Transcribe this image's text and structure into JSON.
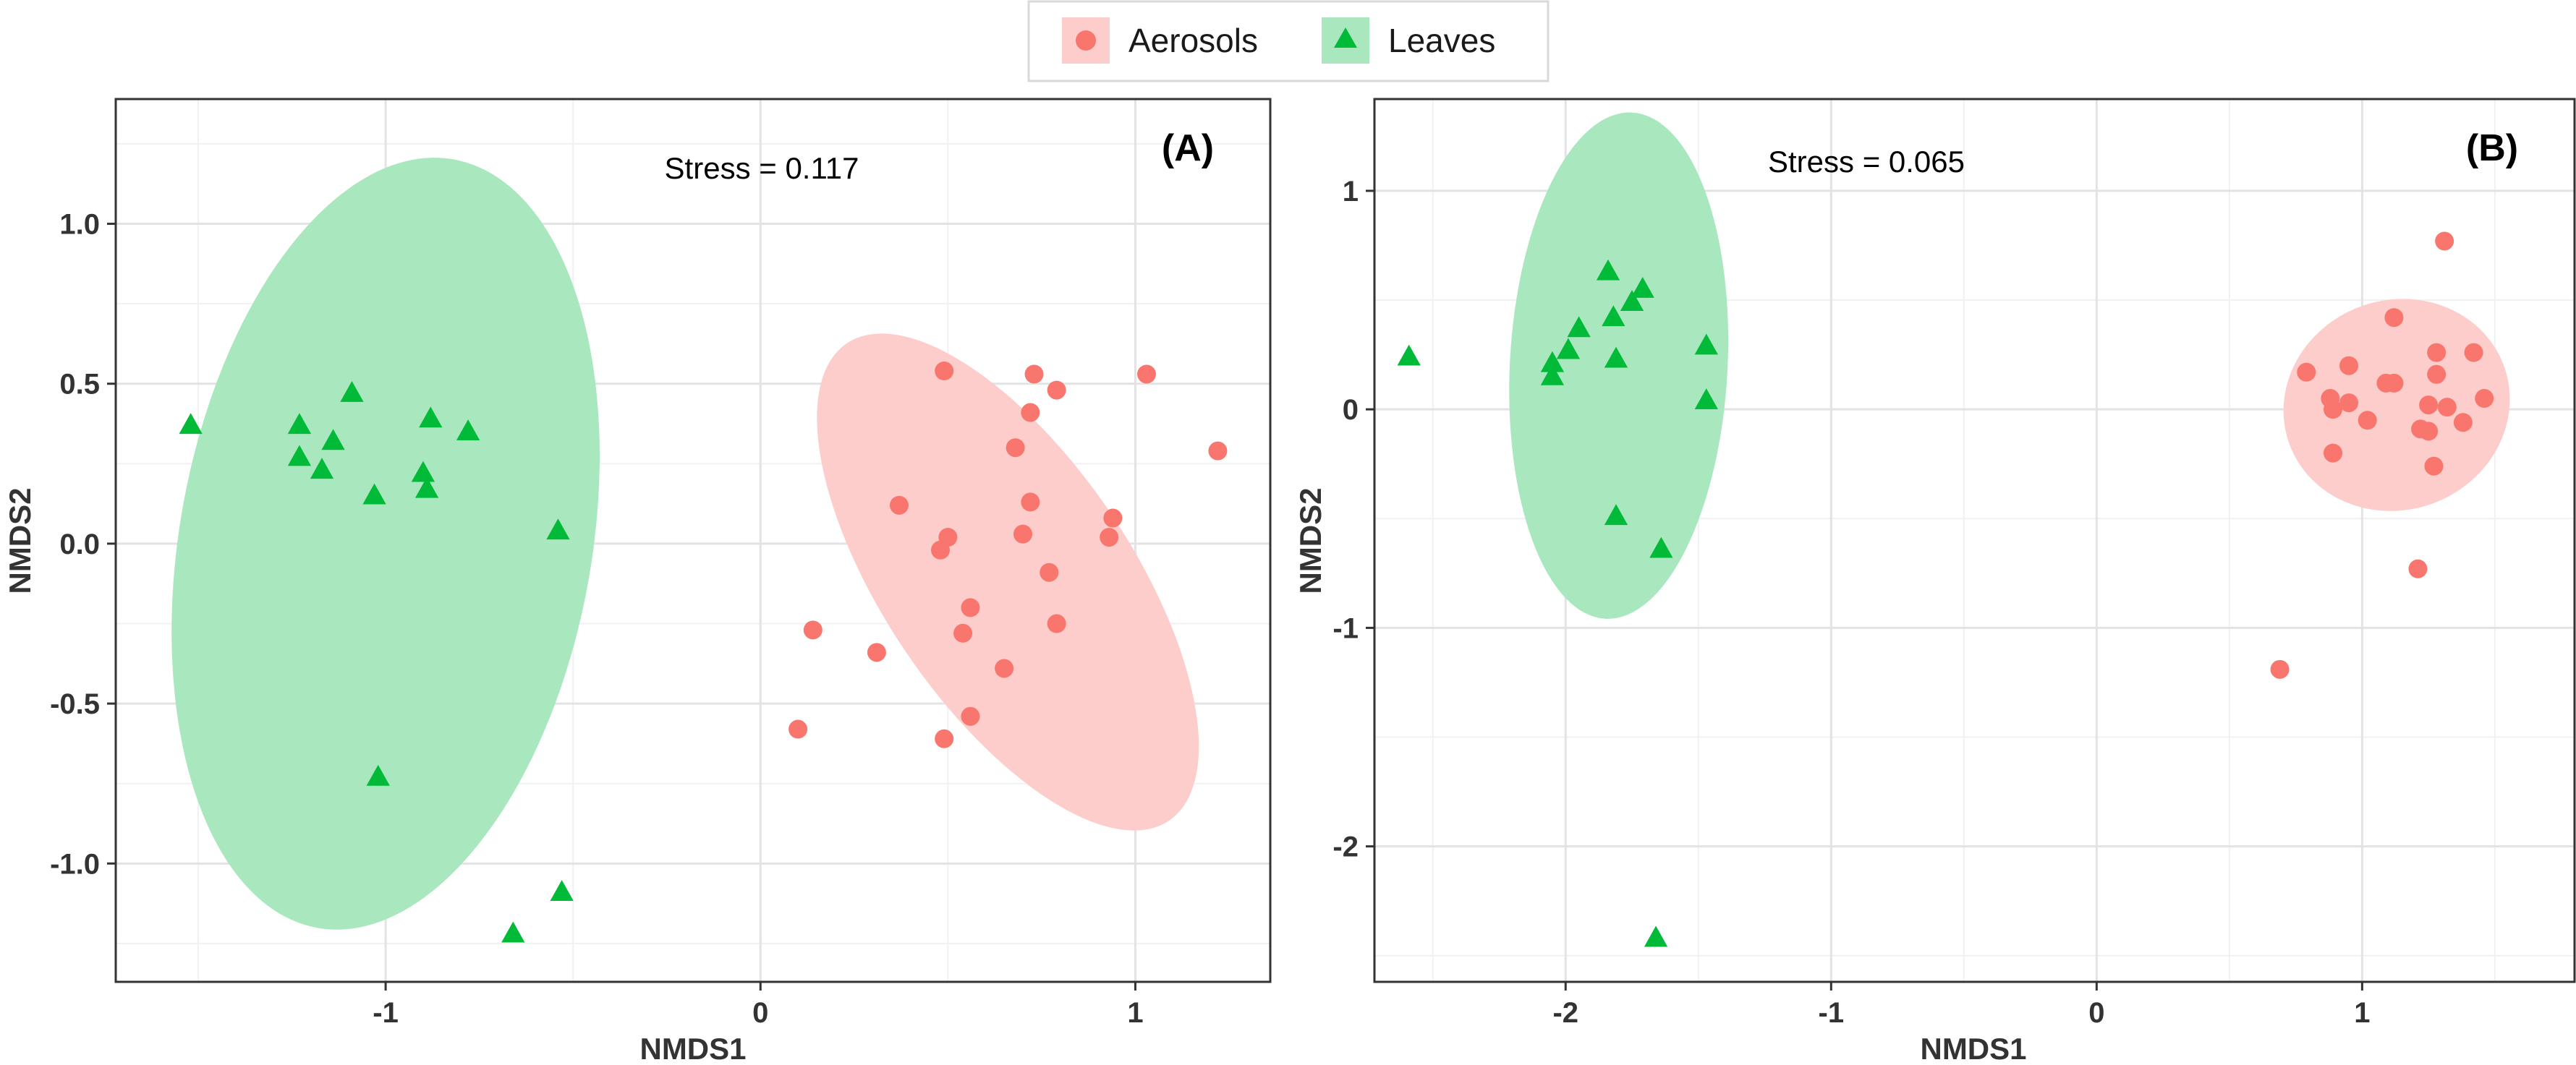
{
  "legend": {
    "items": [
      {
        "name": "Aerosols",
        "color": "#F8766D",
        "shape": "circle"
      },
      {
        "name": "Leaves",
        "color": "#00BA38",
        "shape": "triangle"
      }
    ]
  },
  "ellipse_colors": {
    "Aerosols": "#FCCDCA",
    "Leaves": "#A9E8BE"
  },
  "chart_data": [
    {
      "type": "scatter",
      "panel": "(A)",
      "annotation": "Stress = 0.117",
      "xlabel": "NMDS1",
      "ylabel": "NMDS2",
      "xlim": [
        -1.72,
        1.36
      ],
      "ylim": [
        -1.37,
        1.39
      ],
      "xticks": [
        -1,
        0,
        1
      ],
      "xtick_labels": [
        "-1",
        "0",
        "1"
      ],
      "yticks": [
        -1.0,
        -0.5,
        0.0,
        0.5,
        1.0
      ],
      "ytick_labels": [
        "-1.0",
        "-0.5",
        "0.0",
        "0.5",
        "1.0"
      ],
      "grid": true,
      "ellipses": [
        {
          "group": "Leaves",
          "cx": -1.0,
          "cy": 0.0,
          "rx": 0.55,
          "ry": 1.22,
          "rotation_deg": 10
        },
        {
          "group": "Aerosols",
          "cx": 0.66,
          "cy": -0.12,
          "rx": 0.33,
          "ry": 0.9,
          "rotation_deg": -34
        }
      ],
      "series": [
        {
          "name": "Aerosols",
          "points": [
            [
              0.49,
              0.54
            ],
            [
              0.73,
              0.53
            ],
            [
              1.03,
              0.53
            ],
            [
              0.79,
              0.48
            ],
            [
              0.72,
              0.41
            ],
            [
              0.68,
              0.3
            ],
            [
              1.22,
              0.29
            ],
            [
              0.37,
              0.12
            ],
            [
              0.72,
              0.13
            ],
            [
              0.94,
              0.08
            ],
            [
              0.5,
              0.02
            ],
            [
              0.7,
              0.03
            ],
            [
              0.93,
              0.02
            ],
            [
              0.48,
              -0.02
            ],
            [
              0.77,
              -0.09
            ],
            [
              0.56,
              -0.2
            ],
            [
              0.79,
              -0.25
            ],
            [
              0.14,
              -0.27
            ],
            [
              0.54,
              -0.28
            ],
            [
              0.31,
              -0.34
            ],
            [
              0.65,
              -0.39
            ],
            [
              0.56,
              -0.54
            ],
            [
              0.1,
              -0.58
            ],
            [
              0.49,
              -0.61
            ]
          ]
        },
        {
          "name": "Leaves",
          "points": [
            [
              -1.52,
              0.37
            ],
            [
              -1.23,
              0.37
            ],
            [
              -1.09,
              0.47
            ],
            [
              -1.14,
              0.32
            ],
            [
              -1.23,
              0.27
            ],
            [
              -1.17,
              0.23
            ],
            [
              -0.88,
              0.39
            ],
            [
              -0.78,
              0.35
            ],
            [
              -1.03,
              0.15
            ],
            [
              -0.9,
              0.22
            ],
            [
              -0.89,
              0.17
            ],
            [
              -0.54,
              0.04
            ],
            [
              -1.02,
              -0.73
            ],
            [
              -0.53,
              -1.09
            ],
            [
              -0.66,
              -1.22
            ]
          ]
        }
      ]
    },
    {
      "type": "scatter",
      "panel": "(B)",
      "annotation": "Stress = 0.065",
      "xlabel": "NMDS1",
      "ylabel": "NMDS2",
      "xlim": [
        -2.72,
        1.8
      ],
      "ylim": [
        -2.62,
        1.42
      ],
      "xticks": [
        -2,
        -1,
        0,
        1
      ],
      "xtick_labels": [
        "-2",
        "-1",
        "0",
        "1"
      ],
      "yticks": [
        -2,
        -1,
        0,
        1
      ],
      "ytick_labels": [
        "-2",
        "-1",
        "0",
        "1"
      ],
      "grid": true,
      "ellipses": [
        {
          "group": "Leaves",
          "cx": -1.8,
          "cy": 0.2,
          "rx": 0.41,
          "ry": 1.16,
          "rotation_deg": 3
        },
        {
          "group": "Aerosols",
          "cx": 1.13,
          "cy": 0.02,
          "rx": 0.43,
          "ry": 0.48,
          "rotation_deg": -20
        }
      ],
      "series": [
        {
          "name": "Aerosols",
          "points": [
            [
              1.31,
              0.77
            ],
            [
              1.12,
              0.42
            ],
            [
              0.95,
              0.2
            ],
            [
              1.28,
              0.26
            ],
            [
              1.42,
              0.26
            ],
            [
              0.79,
              0.17
            ],
            [
              1.28,
              0.16
            ],
            [
              1.09,
              0.12
            ],
            [
              1.12,
              0.12
            ],
            [
              0.88,
              0.05
            ],
            [
              0.95,
              0.03
            ],
            [
              1.46,
              0.05
            ],
            [
              1.25,
              0.02
            ],
            [
              1.32,
              0.01
            ],
            [
              0.89,
              0.0
            ],
            [
              1.02,
              -0.05
            ],
            [
              1.38,
              -0.06
            ],
            [
              1.22,
              -0.09
            ],
            [
              1.25,
              -0.1
            ],
            [
              0.89,
              -0.2
            ],
            [
              1.27,
              -0.26
            ],
            [
              1.21,
              -0.73
            ],
            [
              0.69,
              -1.19
            ]
          ]
        },
        {
          "name": "Leaves",
          "points": [
            [
              -1.84,
              0.63
            ],
            [
              -1.71,
              0.55
            ],
            [
              -1.75,
              0.49
            ],
            [
              -1.82,
              0.42
            ],
            [
              -1.95,
              0.37
            ],
            [
              -1.99,
              0.27
            ],
            [
              -1.47,
              0.29
            ],
            [
              -2.59,
              0.24
            ],
            [
              -1.81,
              0.23
            ],
            [
              -2.05,
              0.21
            ],
            [
              -2.05,
              0.15
            ],
            [
              -1.47,
              0.04
            ],
            [
              -1.81,
              -0.49
            ],
            [
              -1.64,
              -0.64
            ],
            [
              -1.66,
              -2.42
            ]
          ]
        }
      ]
    }
  ]
}
